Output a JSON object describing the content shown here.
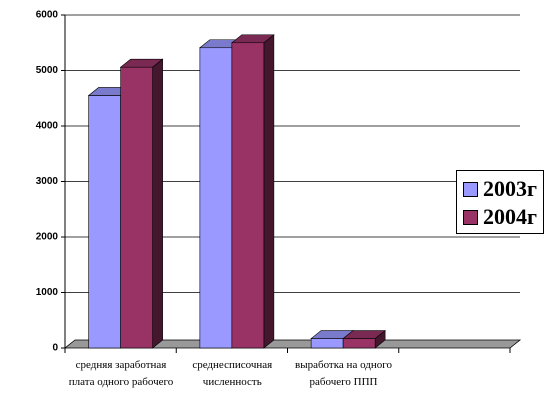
{
  "chart_data": {
    "type": "bar3d",
    "categories": [
      "средняя заработная плата одного рабочего",
      "среднесписочная численность",
      "выработка на одного рабочего ППП",
      null
    ],
    "series": [
      {
        "name": "2003г",
        "color": "#9999ff",
        "values": [
          4550,
          5410,
          170,
          null
        ]
      },
      {
        "name": "2004г",
        "color": "#993366",
        "values": [
          5060,
          5500,
          170,
          null
        ]
      }
    ],
    "ylim": [
      0,
      6000
    ],
    "yticks": [
      0,
      1000,
      2000,
      3000,
      4000,
      5000,
      6000
    ],
    "grid": true,
    "legend": "right"
  }
}
